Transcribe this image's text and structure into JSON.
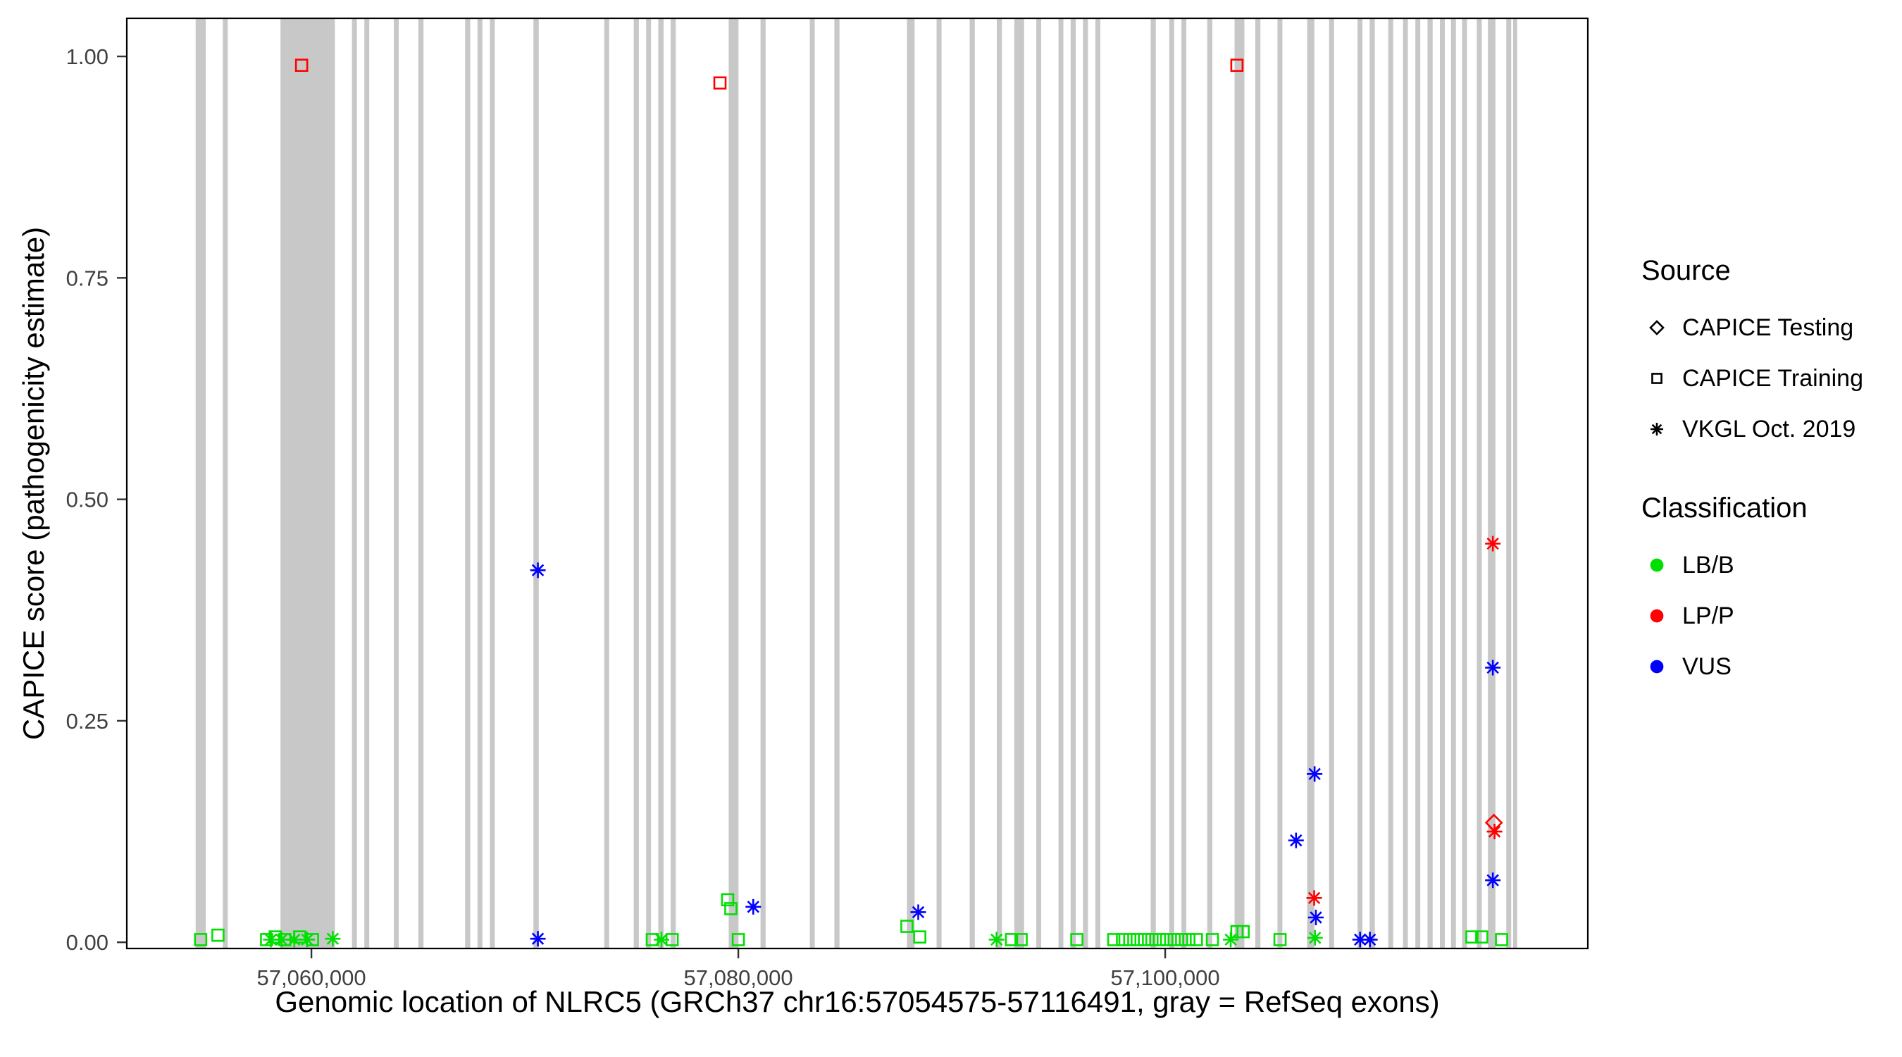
{
  "chart_data": {
    "type": "scatter",
    "title": "",
    "xlabel": "Genomic location of NLRC5 (GRCh37 chr16:57054575-57116491, gray = RefSeq exons)",
    "ylabel": "CAPICE score (pathogenicity estimate)",
    "xlim": [
      57051350,
      57119800
    ],
    "ylim": [
      -0.007,
      1.043
    ],
    "grid": "off",
    "legend_position": "right",
    "exon_color": "#c8c8c8",
    "x_ticks": [
      {
        "value": 57060000,
        "label": "57,060,000"
      },
      {
        "value": 57080000,
        "label": "57,080,000"
      },
      {
        "value": 57100000,
        "label": "57,100,000"
      }
    ],
    "y_ticks": [
      {
        "value": 0.0,
        "label": "0.00"
      },
      {
        "value": 0.25,
        "label": "0.25"
      },
      {
        "value": 0.5,
        "label": "0.50"
      },
      {
        "value": 0.75,
        "label": "0.75"
      },
      {
        "value": 1.0,
        "label": "1.00"
      }
    ],
    "exons": [
      [
        57054575,
        57055050
      ],
      [
        57055850,
        57056080
      ],
      [
        57058550,
        57061100
      ],
      [
        57061900,
        57062130
      ],
      [
        57062480,
        57062710
      ],
      [
        57063860,
        57064090
      ],
      [
        57065010,
        57065250
      ],
      [
        57067200,
        57067440
      ],
      [
        57067780,
        57068010
      ],
      [
        57068360,
        57068590
      ],
      [
        57070400,
        57070650
      ],
      [
        57073720,
        57073950
      ],
      [
        57075100,
        57075340
      ],
      [
        57075680,
        57075910
      ],
      [
        57076250,
        57076500
      ],
      [
        57076830,
        57077070
      ],
      [
        57079550,
        57080010
      ],
      [
        57081040,
        57081280
      ],
      [
        57083350,
        57083580
      ],
      [
        57084500,
        57084740
      ],
      [
        57087900,
        57088260
      ],
      [
        57089290,
        57089520
      ],
      [
        57090840,
        57091080
      ],
      [
        57092110,
        57092350
      ],
      [
        57092930,
        57093390
      ],
      [
        57093960,
        57094190
      ],
      [
        57095000,
        57095230
      ],
      [
        57095570,
        57095810
      ],
      [
        57096150,
        57096380
      ],
      [
        57096730,
        57096960
      ],
      [
        57099320,
        57099560
      ],
      [
        57100190,
        57100420
      ],
      [
        57100760,
        57100990
      ],
      [
        57101970,
        57102210
      ],
      [
        57103250,
        57103710
      ],
      [
        57104220,
        57104460
      ],
      [
        57105260,
        57105490
      ],
      [
        57106650,
        57106990
      ],
      [
        57107680,
        57107910
      ],
      [
        57109010,
        57109240
      ],
      [
        57109580,
        57109820
      ],
      [
        57110450,
        57110680
      ],
      [
        57111140,
        57111370
      ],
      [
        57111720,
        57111950
      ],
      [
        57112290,
        57112530
      ],
      [
        57112870,
        57113100
      ],
      [
        57113390,
        57113620
      ],
      [
        57113910,
        57114140
      ],
      [
        57114600,
        57114830
      ],
      [
        57115120,
        57115470
      ],
      [
        57115980,
        57116210
      ],
      [
        57116300,
        57116491
      ]
    ],
    "series": [
      {
        "name": "CAPICE Training / LP/P",
        "source": "CAPICE Training",
        "classification": "LP/P",
        "symbol": "square",
        "color": "#ff0000",
        "points": [
          [
            57059540,
            0.99
          ],
          [
            57079140,
            0.97
          ],
          [
            57103360,
            0.99
          ]
        ]
      },
      {
        "name": "CAPICE Training / LB/B",
        "source": "CAPICE Training",
        "classification": "LB/B",
        "symbol": "square",
        "color": "#00e000",
        "points": [
          [
            57054810,
            0.003
          ],
          [
            57055620,
            0.008
          ],
          [
            57057900,
            0.003
          ],
          [
            57058300,
            0.006
          ],
          [
            57058750,
            0.003
          ],
          [
            57059450,
            0.006
          ],
          [
            57060050,
            0.003
          ],
          [
            57075970,
            0.003
          ],
          [
            57076900,
            0.003
          ],
          [
            57079500,
            0.048
          ],
          [
            57079650,
            0.038
          ],
          [
            57080000,
            0.003
          ],
          [
            57087900,
            0.018
          ],
          [
            57088500,
            0.006
          ],
          [
            57092800,
            0.003
          ],
          [
            57093250,
            0.003
          ],
          [
            57095860,
            0.003
          ],
          [
            57097590,
            0.003
          ],
          [
            57098000,
            0.003
          ],
          [
            57098340,
            0.003
          ],
          [
            57098690,
            0.003
          ],
          [
            57099030,
            0.003
          ],
          [
            57099380,
            0.003
          ],
          [
            57099730,
            0.003
          ],
          [
            57100070,
            0.003
          ],
          [
            57100420,
            0.003
          ],
          [
            57100770,
            0.003
          ],
          [
            57101110,
            0.003
          ],
          [
            57101460,
            0.003
          ],
          [
            57102210,
            0.003
          ],
          [
            57103360,
            0.012
          ],
          [
            57103650,
            0.012
          ],
          [
            57105380,
            0.003
          ],
          [
            57114370,
            0.006
          ],
          [
            57114830,
            0.006
          ],
          [
            57115760,
            0.003
          ]
        ]
      },
      {
        "name": "VKGL Oct. 2019 / LB/B",
        "source": "VKGL Oct. 2019",
        "classification": "LB/B",
        "symbol": "asterisk",
        "color": "#00e000",
        "points": [
          [
            57058100,
            0.003
          ],
          [
            57058600,
            0.003
          ],
          [
            57059200,
            0.003
          ],
          [
            57059800,
            0.003
          ],
          [
            57061000,
            0.004
          ],
          [
            57076400,
            0.003
          ],
          [
            57092100,
            0.003
          ],
          [
            57103070,
            0.003
          ],
          [
            57107020,
            0.005
          ]
        ]
      },
      {
        "name": "VKGL Oct. 2019 / VUS",
        "source": "VKGL Oct. 2019",
        "classification": "VUS",
        "symbol": "asterisk",
        "color": "#0000ff",
        "points": [
          [
            57070610,
            0.42
          ],
          [
            57070610,
            0.004
          ],
          [
            57080700,
            0.04
          ],
          [
            57088430,
            0.034
          ],
          [
            57106130,
            0.115
          ],
          [
            57107000,
            0.19
          ],
          [
            57107060,
            0.028
          ],
          [
            57109130,
            0.003
          ],
          [
            57109590,
            0.003
          ],
          [
            57115350,
            0.31
          ],
          [
            57115350,
            0.07
          ]
        ]
      },
      {
        "name": "VKGL Oct. 2019 / LP/P",
        "source": "VKGL Oct. 2019",
        "classification": "LP/P",
        "symbol": "asterisk",
        "color": "#ff0000",
        "points": [
          [
            57106980,
            0.05
          ],
          [
            57115350,
            0.45
          ],
          [
            57115430,
            0.125
          ]
        ]
      },
      {
        "name": "CAPICE Testing / LP/P",
        "source": "CAPICE Testing",
        "classification": "LP/P",
        "symbol": "diamond",
        "color": "#ff0000",
        "points": [
          [
            57115400,
            0.135
          ]
        ]
      }
    ]
  },
  "legend": {
    "source": {
      "title": "Source",
      "items": [
        {
          "label": "CAPICE Testing",
          "symbol": "diamond",
          "color": "#000000"
        },
        {
          "label": "CAPICE Training",
          "symbol": "square",
          "color": "#000000"
        },
        {
          "label": "VKGL Oct. 2019",
          "symbol": "asterisk",
          "color": "#000000"
        }
      ]
    },
    "classification": {
      "title": "Classification",
      "items": [
        {
          "label": "LB/B",
          "symbol": "circle",
          "color": "#00e000"
        },
        {
          "label": "LP/P",
          "symbol": "circle",
          "color": "#ff0000"
        },
        {
          "label": "VUS",
          "symbol": "circle",
          "color": "#0000ff"
        }
      ]
    }
  }
}
